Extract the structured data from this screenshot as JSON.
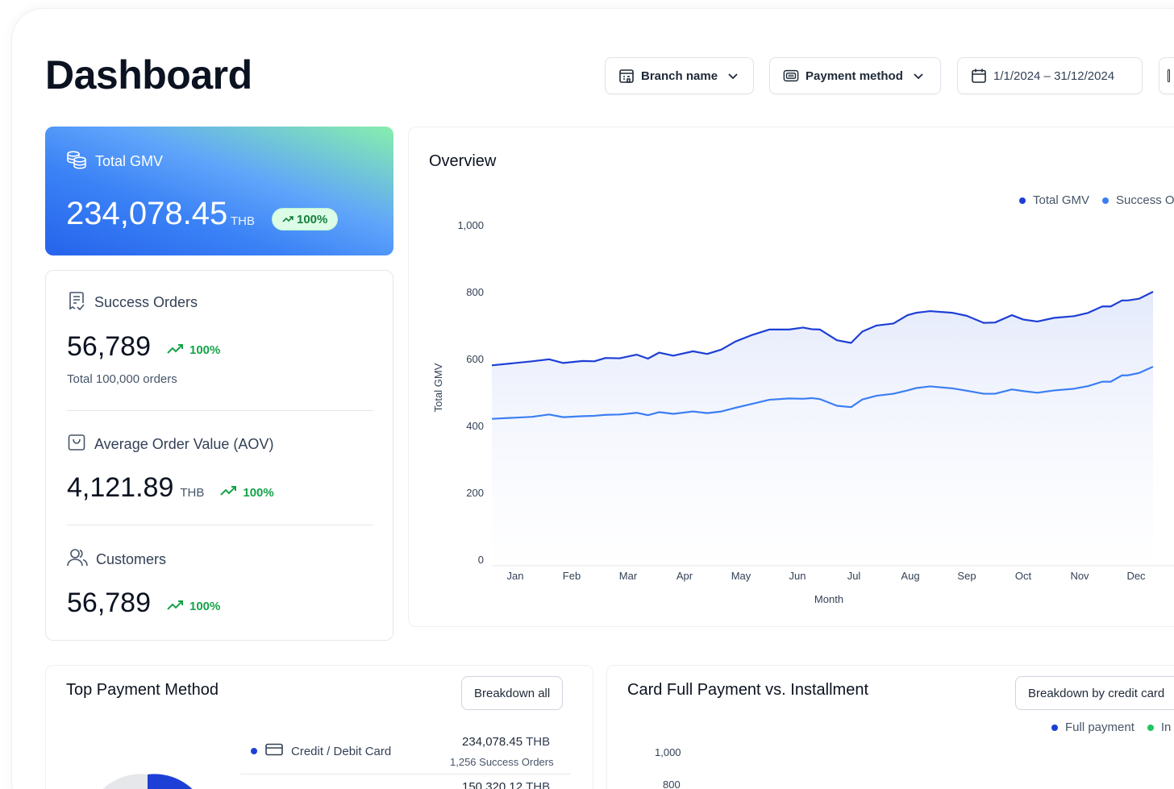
{
  "header": {
    "title": "Dashboard",
    "filters": {
      "branch_label": "Branch name",
      "payment_label": "Payment method",
      "date_range": "1/1/2024 – 31/12/2024"
    }
  },
  "gmv": {
    "label": "Total GMV",
    "value": "234,078.45",
    "unit": "THB",
    "trend": "100%"
  },
  "stats": {
    "success_orders": {
      "label": "Success Orders",
      "value": "56,789",
      "trend": "100%",
      "subtext": "Total 100,000 orders"
    },
    "aov": {
      "label": "Average Order Value (AOV)",
      "value": "4,121.89",
      "unit": "THB",
      "trend": "100%"
    },
    "customers": {
      "label": "Customers",
      "value": "56,789",
      "trend": "100%"
    }
  },
  "colors": {
    "primary_series": "#1d3fd6",
    "secondary_series": "#3b7ef4",
    "trend_green": "#16a34a",
    "installment_green": "#22c55e"
  },
  "icons": [
    "calendar-building-icon",
    "payment-card-icon",
    "calendar-icon",
    "chevron-down-icon",
    "coins-icon",
    "trend-up-icon",
    "receipt-check-icon",
    "bag-icon",
    "users-icon",
    "credit-card-icon"
  ],
  "overview": {
    "title": "Overview",
    "legend": [
      "Total GMV",
      "Success O"
    ]
  },
  "chart_data": [
    {
      "type": "area",
      "title": "Overview",
      "xlabel": "Month",
      "ylabel": "Total GMV",
      "ylim": [
        0,
        1000
      ],
      "yticks": [
        0,
        200,
        400,
        600,
        800,
        1000
      ],
      "categories": [
        "Jan",
        "Feb",
        "Mar",
        "Apr",
        "May",
        "Jun",
        "Jul",
        "Aug",
        "Sep",
        "Oct",
        "Nov",
        "Dec"
      ],
      "grid": false,
      "legend_position": "top-right",
      "series": [
        {
          "name": "Total GMV",
          "color": "#1d3fd6",
          "x": [
            0,
            0.3,
            0.6,
            0.85,
            1.2,
            1.4,
            1.6,
            1.85,
            2.15,
            2.35,
            2.55,
            2.8,
            3.15,
            3.4,
            3.65,
            3.9,
            4.2,
            4.5,
            4.85,
            5.1,
            5.25,
            5.4,
            5.7,
            5.95,
            6.15,
            6.4,
            6.7,
            6.95,
            7.1,
            7.35,
            7.75,
            8.0,
            8.3,
            8.5,
            8.8,
            9.0,
            9.25,
            9.55,
            9.9,
            10.15,
            10.4,
            10.55,
            10.75,
            10.85,
            11.05,
            11.3
          ],
          "values": [
            580,
            592,
            598,
            587,
            593,
            592,
            602,
            601,
            612,
            600,
            618,
            609,
            622,
            614,
            627,
            651,
            671,
            687,
            687,
            693,
            688,
            687,
            655,
            647,
            681,
            699,
            705,
            730,
            737,
            742,
            737,
            728,
            707,
            708,
            730,
            717,
            711,
            722,
            727,
            737,
            756,
            756,
            774,
            774,
            779,
            800
          ]
        },
        {
          "name": "Success Orders",
          "color": "#3b7ef4",
          "x": [
            0,
            0.3,
            0.6,
            0.85,
            1.2,
            1.4,
            1.6,
            1.85,
            2.15,
            2.35,
            2.55,
            2.8,
            3.15,
            3.4,
            3.65,
            3.9,
            4.2,
            4.5,
            4.85,
            5.1,
            5.25,
            5.4,
            5.7,
            5.95,
            6.15,
            6.4,
            6.7,
            6.95,
            7.1,
            7.35,
            7.75,
            8.0,
            8.3,
            8.5,
            8.8,
            9.0,
            9.25,
            9.55,
            9.9,
            10.15,
            10.4,
            10.55,
            10.75,
            10.85,
            11.05,
            11.3
          ],
          "values": [
            420,
            426,
            433,
            425,
            428,
            429,
            432,
            433,
            438,
            431,
            440,
            435,
            442,
            437,
            442,
            453,
            465,
            477,
            481,
            480,
            482,
            479,
            459,
            455,
            478,
            489,
            495,
            505,
            512,
            517,
            511,
            504,
            495,
            495,
            508,
            503,
            498,
            505,
            510,
            518,
            531,
            531,
            550,
            550,
            557,
            576
          ]
        }
      ]
    },
    {
      "type": "bar",
      "title": "Card Full Payment vs. Installment",
      "ylim": [
        0,
        1000
      ],
      "yticks_visible": [
        800,
        1000
      ],
      "legend_position": "top-right",
      "series": [
        {
          "name": "Full payment",
          "color": "#1d3fd6"
        },
        {
          "name": "In",
          "color": "#22c55e"
        }
      ]
    }
  ],
  "top_payment": {
    "title": "Top Payment Method",
    "breakdown_button": "Breakdown all",
    "rows": [
      {
        "name": "Credit / Debit Card",
        "amount": "234,078.45",
        "unit": "THB",
        "orders": "1,256 Success Orders"
      },
      {
        "amount": "150,320.12",
        "unit": "THB"
      }
    ]
  },
  "card_payment": {
    "title": "Card Full Payment vs. Installment",
    "breakdown_button": "Breakdown by credit card",
    "legend": [
      "Full payment",
      "In"
    ],
    "yticks": [
      "1,000",
      "800"
    ]
  }
}
